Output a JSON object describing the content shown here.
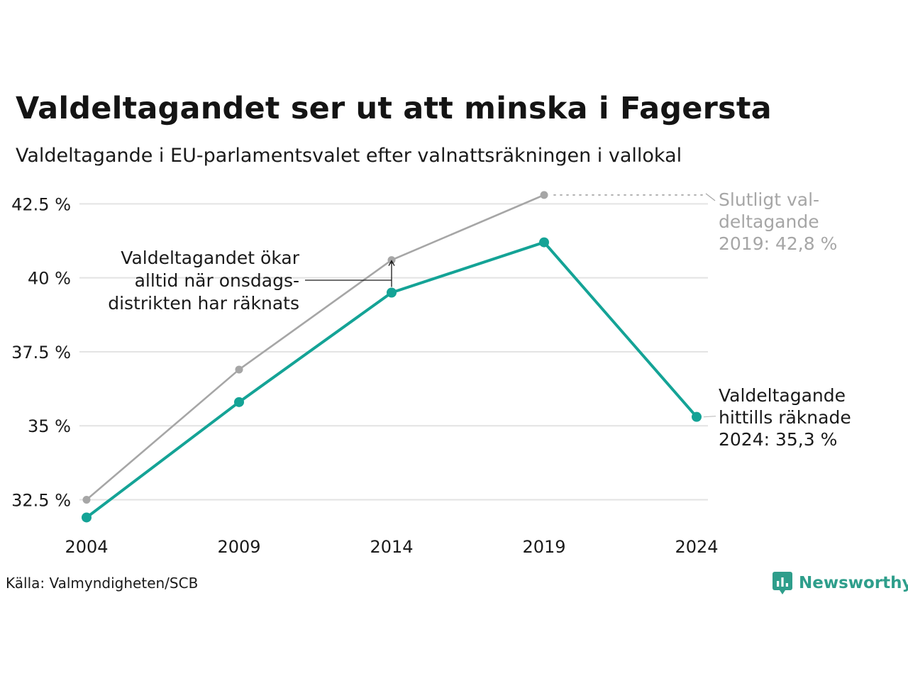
{
  "title": "Valdeltagandet ser ut att minska i Fagersta",
  "subtitle": "Valdeltagande i EU-parlamentsvalet efter valnattsräkningen i vallokal",
  "source": "Källa: Valmyndigheten/SCB",
  "brand": "Newsworthy",
  "colors": {
    "accent": "#14a396",
    "final": "#a6a6a6",
    "grid": "#e3e3e3",
    "text": "#1a1a1a",
    "muted_text": "#a6a6a6",
    "brand": "#2e9e8b"
  },
  "chart_data": {
    "type": "line",
    "x": [
      2004,
      2009,
      2014,
      2019,
      2024
    ],
    "y_ticks": [
      32.5,
      35,
      37.5,
      40,
      42.5
    ],
    "y_tick_labels": [
      "32.5 %",
      "35 %",
      "37.5 %",
      "40 %",
      "42.5 %"
    ],
    "x_tick_labels": [
      "2004",
      "2009",
      "2014",
      "2019",
      "2024"
    ],
    "ylim": [
      31.6,
      43.3
    ],
    "grid": true,
    "series": [
      {
        "key": "final",
        "values": [
          32.5,
          36.9,
          40.6,
          42.8,
          null
        ]
      },
      {
        "key": "counted",
        "values": [
          31.9,
          35.8,
          39.5,
          41.2,
          35.3
        ]
      }
    ],
    "annotations": {
      "final_label": [
        "Slutligt val-",
        "deltagande",
        "2019: 42,8 %"
      ],
      "counted_label": [
        "Valdeltagande",
        "hittills räknade",
        "2024: 35,3 %"
      ],
      "wednesday_note": [
        "Valdeltagandet ökar",
        "alltid när onsdags-",
        "distrikten har räknats"
      ]
    }
  }
}
